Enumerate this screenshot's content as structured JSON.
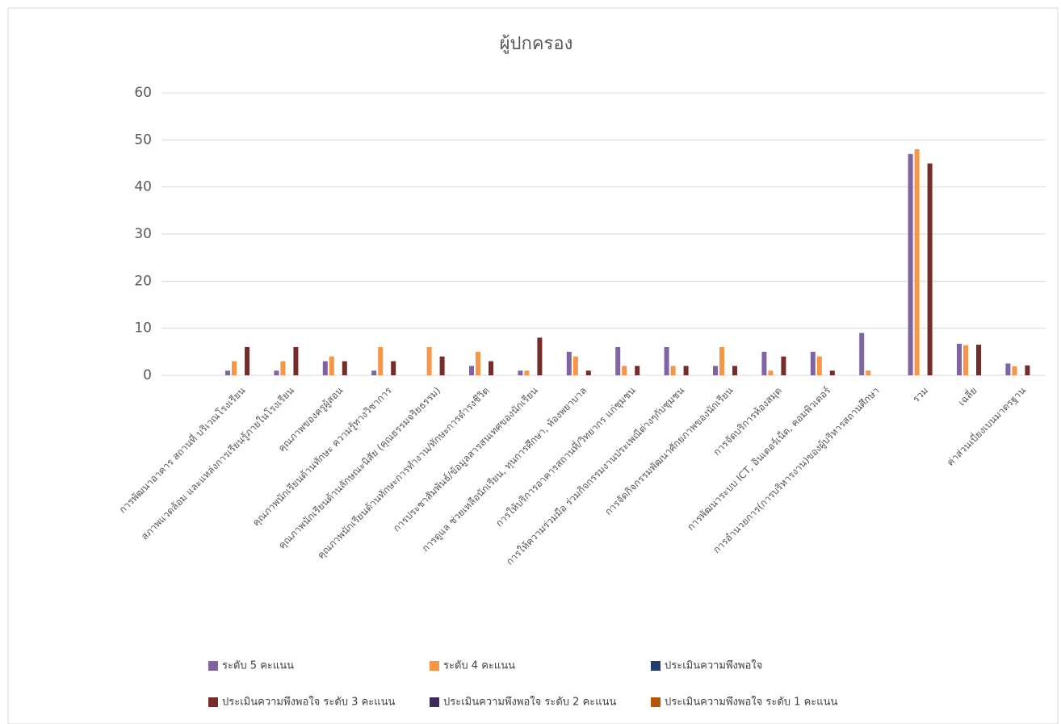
{
  "chart_data": {
    "type": "bar",
    "title": "ผู้ปกครอง",
    "categories": [
      "การพัฒนาอาคาร สถานที่ บริเวณโรงเรียน",
      "สภาพแวดล้อม และแหล่งการเรียนรู้ภายในโรงเรียน",
      "คุณภาพของครูผู้สอน",
      "คุณภาพนักเรียนด้านทักษะ ความรู้ทางวิชาการ",
      "คุณภาพนักเรียนด้านลักษณะนิสัย (คุณธรรมจริยธรรม)",
      "คุณภาพนักเรียนด้านทักษะการทำงาน/ทักษะการดำรงชีวิต",
      "การประชาสัมพันธ์/ข้อมูลสารสนเทศของนักเรียน",
      "การดูแล ช่วยเหลือนักเรียน, ทุนการศึกษา, ห้องพยาบาล",
      "การให้บริการอาคารสถานที่/วิทยากร แก่ชุมชน",
      "การให้ความร่วมมือ ร่วมกิจกรรมงานประเพณีต่างๆกับชุมชน",
      "การจัดกิจกรรมพัฒนาศักยภาพของนักเรียน",
      "การจัดบริการห้องสมุด",
      "การพัฒนาระบบ ICT, อินเตอร์เน็ต, คอมพิวเตอร์",
      "การอำนวยการ(การบริหารงาน)ของผู้บริหารสถานศึกษา",
      "รวม",
      "เฉลี่ย",
      "ค่าส่วนเบี่ยงเบนมาตรฐาน"
    ],
    "series": [
      {
        "name": "ระดับ 5 คะแนน",
        "color": "#8064a2",
        "values": [
          1,
          1,
          3,
          1,
          null,
          2,
          1,
          5,
          6,
          6,
          2,
          5,
          5,
          9,
          47,
          6.7,
          2.5
        ]
      },
      {
        "name": "ระดับ 4 คะแนน",
        "color": "#f79646",
        "values": [
          3,
          3,
          4,
          6,
          6,
          5,
          1,
          4,
          2,
          2,
          6,
          1,
          4,
          1,
          48,
          6.4,
          1.9
        ]
      },
      {
        "name": "ประเมินความพึงพอใจ",
        "color": "#1f3f6e",
        "values": [
          null,
          null,
          null,
          null,
          null,
          null,
          null,
          null,
          null,
          null,
          null,
          null,
          null,
          null,
          null,
          null,
          null
        ]
      },
      {
        "name": "ประเมินความพึงพอใจ ระดับ 3 คะแนน",
        "color": "#772c2a",
        "values": [
          6,
          6,
          3,
          3,
          4,
          3,
          8,
          1,
          2,
          2,
          2,
          4,
          1,
          null,
          45,
          6.5,
          2.1
        ]
      },
      {
        "name": "ประเมินความพึงพอใจ ระดับ 2 คะแนน",
        "color": "#3f2b5a",
        "values": [
          null,
          null,
          null,
          null,
          null,
          null,
          null,
          null,
          null,
          null,
          null,
          null,
          null,
          null,
          null,
          null,
          null
        ]
      },
      {
        "name": "ประเมินความพึงพอใจ ระดับ 1 คะแนน",
        "color": "#b65708",
        "values": [
          null,
          null,
          null,
          null,
          null,
          null,
          null,
          null,
          null,
          null,
          null,
          null,
          null,
          null,
          null,
          null,
          null
        ]
      }
    ],
    "ylim": [
      0,
      60
    ],
    "yticks": [
      0,
      10,
      20,
      30,
      40,
      50,
      60
    ],
    "grid": true,
    "legend": "bottom"
  }
}
